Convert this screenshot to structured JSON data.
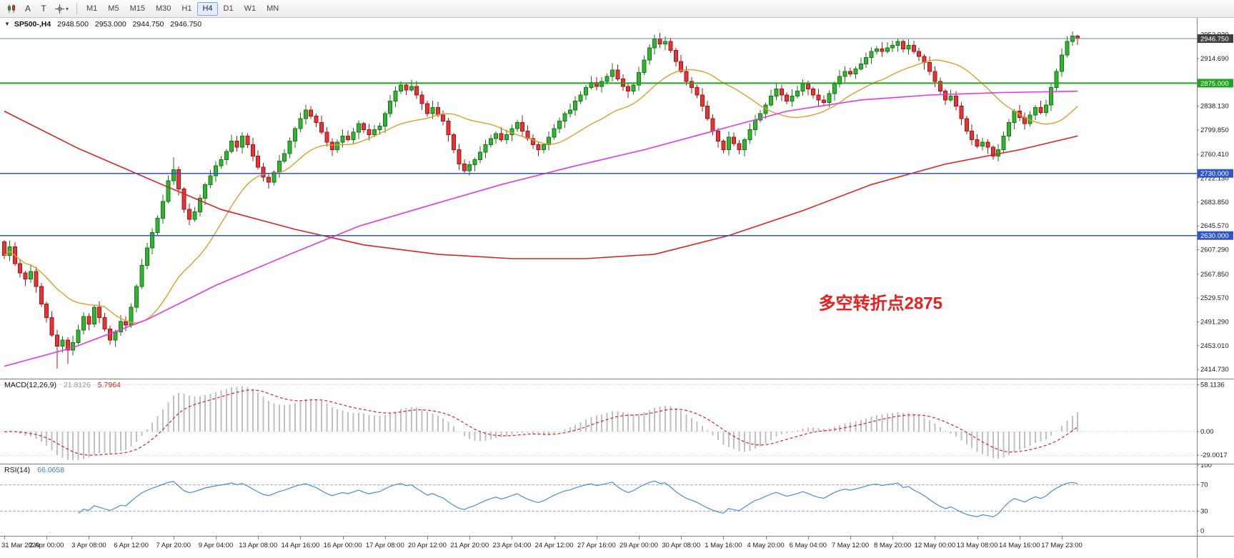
{
  "icons": {
    "expand": "▼",
    "caret": "▾"
  },
  "toolbar": {
    "a_label": "A",
    "t_label": "T",
    "timeframes": [
      "M1",
      "M5",
      "M15",
      "M30",
      "H1",
      "H4",
      "D1",
      "W1",
      "MN"
    ],
    "active_timeframe": "H4"
  },
  "symbol_header": {
    "title": "SP500-,H4",
    "open": "2948.500",
    "high": "2953.000",
    "low": "2944.750",
    "close": "2946.750"
  },
  "annotation": {
    "text": "多空转折点2875",
    "color": "#e82020",
    "bar": 154,
    "price": 2512,
    "font_size": 24
  },
  "colors": {
    "up_fill": "#33b333",
    "up_stroke": "#157a15",
    "down_fill": "#e23535",
    "down_stroke": "#a81414",
    "ma_red": "#dd2222",
    "ma_magenta": "#e23ae2",
    "ma_orange": "#e09c2e",
    "macd_hist": "#c0c0c0",
    "macd_signal": "#dd2222",
    "rsi_line": "#4a8fd4",
    "price_line": "#5b87b7",
    "price_label_bg": "#404040",
    "grid_dotted": "#cfcfcf",
    "axis_border": "#808080"
  },
  "chart_data": {
    "type": "candlestick",
    "symbol": "SP500-",
    "timeframe": "H4",
    "first_open": 2620,
    "closes": [
      2598,
      2612,
      2585,
      2570,
      2560,
      2572,
      2548,
      2520,
      2498,
      2470,
      2452,
      2462,
      2446,
      2458,
      2478,
      2500,
      2488,
      2515,
      2498,
      2480,
      2462,
      2475,
      2492,
      2486,
      2515,
      2548,
      2582,
      2610,
      2635,
      2658,
      2685,
      2718,
      2736,
      2705,
      2672,
      2656,
      2668,
      2690,
      2712,
      2726,
      2742,
      2752,
      2765,
      2782,
      2772,
      2790,
      2776,
      2758,
      2740,
      2724,
      2716,
      2732,
      2750,
      2762,
      2782,
      2802,
      2818,
      2832,
      2822,
      2812,
      2796,
      2780,
      2768,
      2780,
      2790,
      2784,
      2796,
      2810,
      2800,
      2792,
      2800,
      2806,
      2826,
      2846,
      2862,
      2872,
      2864,
      2870,
      2856,
      2842,
      2826,
      2836,
      2824,
      2814,
      2792,
      2768,
      2745,
      2734,
      2744,
      2752,
      2764,
      2776,
      2786,
      2794,
      2784,
      2792,
      2802,
      2812,
      2798,
      2786,
      2776,
      2768,
      2776,
      2788,
      2802,
      2814,
      2826,
      2832,
      2846,
      2856,
      2868,
      2876,
      2870,
      2878,
      2886,
      2896,
      2882,
      2870,
      2862,
      2872,
      2892,
      2912,
      2932,
      2946,
      2938,
      2942,
      2928,
      2910,
      2894,
      2878,
      2868,
      2856,
      2838,
      2818,
      2798,
      2782,
      2768,
      2788,
      2778,
      2768,
      2784,
      2800,
      2816,
      2826,
      2840,
      2854,
      2866,
      2856,
      2846,
      2854,
      2862,
      2874,
      2866,
      2856,
      2848,
      2844,
      2858,
      2874,
      2886,
      2894,
      2890,
      2898,
      2906,
      2916,
      2926,
      2930,
      2926,
      2932,
      2936,
      2942,
      2930,
      2936,
      2926,
      2918,
      2908,
      2894,
      2878,
      2862,
      2848,
      2854,
      2838,
      2818,
      2798,
      2784,
      2774,
      2780,
      2772,
      2758,
      2768,
      2790,
      2812,
      2830,
      2820,
      2810,
      2824,
      2836,
      2828,
      2840,
      2868,
      2894,
      2920,
      2942,
      2951,
      2946.75
    ],
    "wick_overrides": {
      "10": {
        "low": 2416
      },
      "12": {
        "low": 2424
      },
      "32": {
        "high": 2756
      },
      "123": {
        "high": 2953
      },
      "187": {
        "low": 2752
      },
      "203": {
        "high": 2953
      }
    },
    "x_labels": [
      [
        0,
        "31 Mar 2020"
      ],
      [
        8,
        "2 Apr 00:00"
      ],
      [
        16,
        "3 Apr 08:00"
      ],
      [
        24,
        "6 Apr 12:00"
      ],
      [
        32,
        "7 Apr 20:00"
      ],
      [
        40,
        "9 Apr 04:00"
      ],
      [
        48,
        "13 Apr 08:00"
      ],
      [
        56,
        "14 Apr 16:00"
      ],
      [
        64,
        "16 Apr 00:00"
      ],
      [
        72,
        "17 Apr 08:00"
      ],
      [
        80,
        "20 Apr 12:00"
      ],
      [
        88,
        "21 Apr 20:00"
      ],
      [
        96,
        "23 Apr 04:00"
      ],
      [
        104,
        "24 Apr 12:00"
      ],
      [
        112,
        "27 Apr 16:00"
      ],
      [
        120,
        "29 Apr 00:00"
      ],
      [
        128,
        "30 Apr 08:00"
      ],
      [
        136,
        "1 May 16:00"
      ],
      [
        144,
        "4 May 20:00"
      ],
      [
        152,
        "6 May 04:00"
      ],
      [
        160,
        "7 May 12:00"
      ],
      [
        168,
        "8 May 20:00"
      ],
      [
        176,
        "12 May 00:00"
      ],
      [
        184,
        "13 May 08:00"
      ],
      [
        192,
        "14 May 16:00"
      ],
      [
        200,
        "17 May 23:00"
      ]
    ],
    "y_axis": {
      "min": 2400,
      "max": 2980,
      "ticks": [
        "2952.930",
        "2914.690",
        "2838.130",
        "2799.850",
        "2760.410",
        "2722.130",
        "2683.850",
        "2645.570",
        "2607.290",
        "2567.850",
        "2529.570",
        "2491.290",
        "2453.010",
        "2414.730"
      ],
      "current_price": {
        "value": 2946.75,
        "label": "2946.750"
      }
    },
    "hlines": [
      {
        "price": 2875,
        "label": "2875.000",
        "color": "#1fa51f",
        "label_bg": "#1fa51f",
        "width": 2
      },
      {
        "price": 2730,
        "label": "2730.000",
        "color": "#2f55cc",
        "label_bg": "#2f55cc",
        "width": 1.5
      },
      {
        "price": 2630,
        "label": "2630.000",
        "color": "#2f55cc",
        "label_bg": "#2f55cc",
        "width": 1.5
      }
    ],
    "ma_orange": {
      "period": 20
    },
    "ma_magenta": {
      "points": [
        [
          0,
          2420
        ],
        [
          13,
          2450
        ],
        [
          27,
          2495
        ],
        [
          40,
          2550
        ],
        [
          54,
          2600
        ],
        [
          67,
          2645
        ],
        [
          81,
          2680
        ],
        [
          94,
          2712
        ],
        [
          108,
          2742
        ],
        [
          121,
          2768
        ],
        [
          135,
          2800
        ],
        [
          148,
          2830
        ],
        [
          162,
          2848
        ],
        [
          175,
          2856
        ],
        [
          189,
          2860
        ],
        [
          203,
          2862
        ]
      ]
    },
    "ma_red": {
      "points": [
        [
          0,
          2830
        ],
        [
          14,
          2770
        ],
        [
          29,
          2715
        ],
        [
          41,
          2672
        ],
        [
          55,
          2640
        ],
        [
          68,
          2615
        ],
        [
          82,
          2600
        ],
        [
          96,
          2593
        ],
        [
          110,
          2593
        ],
        [
          123,
          2600
        ],
        [
          137,
          2630
        ],
        [
          151,
          2670
        ],
        [
          164,
          2712
        ],
        [
          178,
          2745
        ],
        [
          192,
          2768
        ],
        [
          203,
          2790
        ]
      ]
    },
    "macd": {
      "label": "MACD(12,26,9)",
      "value": "21.8126",
      "signal": "5.7964",
      "fast": 12,
      "slow": 26,
      "signal_period": 9,
      "axis": {
        "min": -36,
        "max": 62,
        "labels": [
          "58.1136",
          "0.00",
          "-29.0017"
        ]
      }
    },
    "rsi": {
      "label": "RSI(14)",
      "value": "66.0658",
      "period": 14,
      "levels": [
        70,
        30
      ],
      "axis_labels": [
        "100",
        "70",
        "30",
        "0"
      ],
      "axis": {
        "min": 0,
        "max": 100
      }
    }
  }
}
